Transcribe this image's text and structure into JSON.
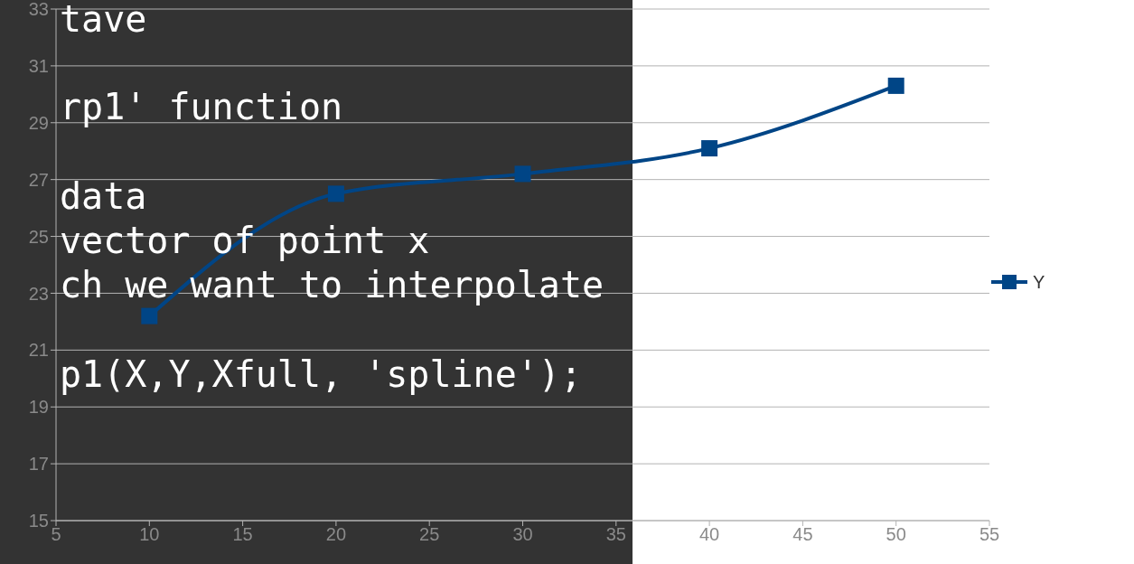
{
  "chart_data": {
    "type": "line",
    "x": [
      10,
      20,
      30,
      40,
      50
    ],
    "series": [
      {
        "name": "Y",
        "color": "#004586",
        "values": [
          22.2,
          26.5,
          27.2,
          28.1,
          30.3
        ]
      }
    ],
    "xlim": [
      5,
      55
    ],
    "xticks": [
      5,
      10,
      15,
      20,
      25,
      30,
      35,
      40,
      45,
      50,
      55
    ],
    "ylim": [
      15,
      33
    ],
    "yticks": [
      15,
      17,
      19,
      21,
      23,
      25,
      27,
      29,
      31,
      33
    ],
    "grid": "y",
    "legend": "right",
    "marker": "square",
    "line_style": "solid",
    "annotations": [
      "tave",
      "rp1' function",
      "data",
      "vector of point x",
      "ch we want to interpolate",
      "p1(X,Y,Xfull, 'spline');"
    ]
  }
}
